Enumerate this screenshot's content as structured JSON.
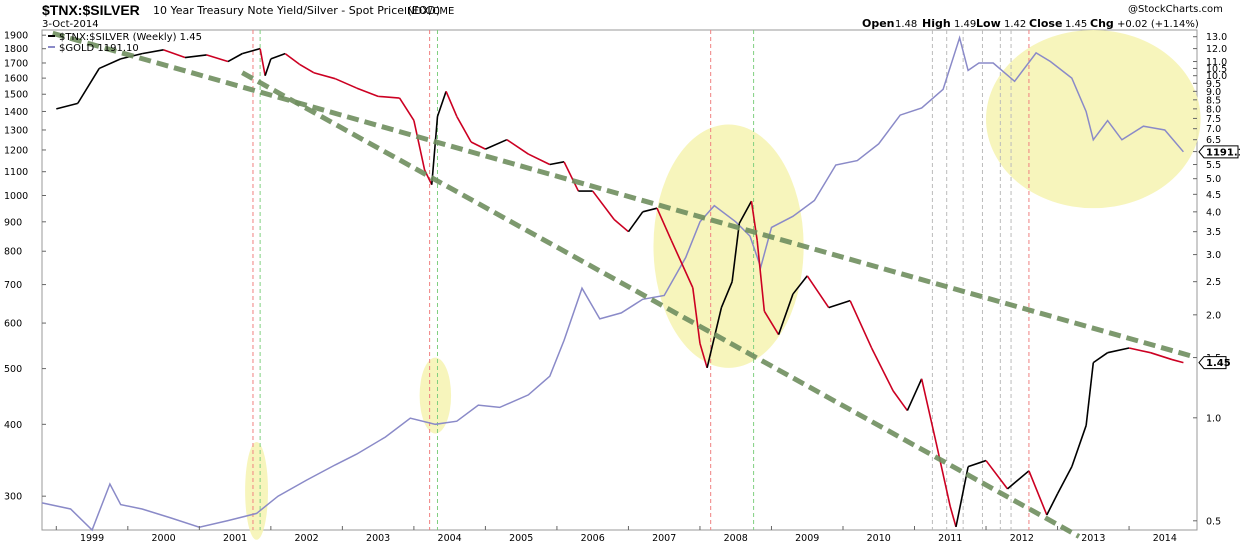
{
  "header": {
    "symbol": "$TNX:$SILVER",
    "description": "10 Year Treasury Note Yield/Silver - Spot Price (EOD)",
    "exchange": "INDX/CME",
    "date": "3-Oct-2014",
    "brand": "@StockCharts.com",
    "ohlc": [
      {
        "label": "Open",
        "value": "1.48"
      },
      {
        "label": "High",
        "value": "1.49"
      },
      {
        "label": "Low",
        "value": "1.42"
      },
      {
        "label": "Close",
        "value": "1.45"
      },
      {
        "label": "Chg",
        "value": "+0.02 (+1.14%)"
      }
    ]
  },
  "legend": [
    {
      "text": "$TNX:$SILVER (Weekly) 1.45",
      "color": "#000000"
    },
    {
      "text": "$GOLD 1191.10",
      "color": "#8a8ac8"
    }
  ],
  "colors": {
    "ratio_up": "#000000",
    "ratio_down": "#cc0022",
    "gold": "#8a8ac8",
    "trendline": "#6f8f5f",
    "highlight": "#f6f3b0",
    "vline_red": "#f08080",
    "vline_green": "#80d080",
    "vline_gray": "#bbbbbb"
  },
  "chart_data": {
    "type": "line",
    "x_labels": [
      "1999",
      "2000",
      "2001",
      "2002",
      "2003",
      "2004",
      "2005",
      "2006",
      "2007",
      "2008",
      "2009",
      "2010",
      "2011",
      "2012",
      "2013",
      "2014"
    ],
    "left_axis": {
      "scale": "log",
      "ticks": [
        1900,
        1800,
        1700,
        1600,
        1500,
        1400,
        1300,
        1200,
        1100,
        1000,
        900,
        800,
        700,
        600,
        500,
        400,
        300
      ],
      "range": [
        262,
        1940
      ]
    },
    "right_axis": {
      "scale": "log",
      "ticks": [
        13.0,
        12.0,
        11.0,
        10.5,
        10.0,
        9.5,
        9.0,
        8.5,
        8.0,
        7.5,
        7.0,
        6.5,
        6.0,
        5.5,
        5.0,
        4.5,
        4.0,
        3.5,
        3.0,
        2.5,
        2.0,
        1.5,
        1.0,
        0.5
      ],
      "range": [
        0.47,
        13.6
      ]
    },
    "last_values": {
      "ratio": "1.45",
      "gold": "1191.10"
    },
    "series": [
      {
        "name": "$TNX:$SILVER (Weekly)",
        "axis": "right",
        "points": [
          [
            1999.0,
            8.0
          ],
          [
            1999.3,
            8.3
          ],
          [
            1999.6,
            10.5
          ],
          [
            1999.9,
            11.2
          ],
          [
            2000.2,
            11.6
          ],
          [
            2000.5,
            11.9
          ],
          [
            2000.8,
            11.3
          ],
          [
            2001.1,
            11.5
          ],
          [
            2001.4,
            11.0
          ],
          [
            2001.6,
            11.6
          ],
          [
            2001.85,
            12.0
          ],
          [
            2001.92,
            10.0
          ],
          [
            2002.0,
            11.2
          ],
          [
            2002.2,
            11.6
          ],
          [
            2002.4,
            10.8
          ],
          [
            2002.6,
            10.2
          ],
          [
            2002.9,
            9.8
          ],
          [
            2003.2,
            9.2
          ],
          [
            2003.5,
            8.7
          ],
          [
            2003.8,
            8.6
          ],
          [
            2004.0,
            7.4
          ],
          [
            2004.15,
            5.3
          ],
          [
            2004.25,
            4.8
          ],
          [
            2004.33,
            7.6
          ],
          [
            2004.45,
            9.0
          ],
          [
            2004.6,
            7.6
          ],
          [
            2004.8,
            6.4
          ],
          [
            2005.0,
            6.1
          ],
          [
            2005.3,
            6.5
          ],
          [
            2005.6,
            5.9
          ],
          [
            2005.9,
            5.5
          ],
          [
            2006.1,
            5.6
          ],
          [
            2006.3,
            4.6
          ],
          [
            2006.5,
            4.6
          ],
          [
            2006.8,
            3.8
          ],
          [
            2007.0,
            3.5
          ],
          [
            2007.2,
            4.0
          ],
          [
            2007.4,
            4.1
          ],
          [
            2007.6,
            3.3
          ],
          [
            2007.9,
            2.4
          ],
          [
            2008.0,
            1.65
          ],
          [
            2008.1,
            1.4
          ],
          [
            2008.3,
            2.1
          ],
          [
            2008.45,
            2.5
          ],
          [
            2008.55,
            3.7
          ],
          [
            2008.72,
            4.3
          ],
          [
            2008.8,
            3.3
          ],
          [
            2008.9,
            2.05
          ],
          [
            2009.1,
            1.75
          ],
          [
            2009.3,
            2.3
          ],
          [
            2009.5,
            2.6
          ],
          [
            2009.8,
            2.1
          ],
          [
            2010.1,
            2.2
          ],
          [
            2010.4,
            1.6
          ],
          [
            2010.7,
            1.2
          ],
          [
            2010.9,
            1.05
          ],
          [
            2011.1,
            1.3
          ],
          [
            2011.3,
            0.85
          ],
          [
            2011.5,
            0.55
          ],
          [
            2011.58,
            0.48
          ],
          [
            2011.75,
            0.72
          ],
          [
            2012.0,
            0.75
          ],
          [
            2012.3,
            0.62
          ],
          [
            2012.6,
            0.7
          ],
          [
            2012.85,
            0.52
          ],
          [
            2013.0,
            0.6
          ],
          [
            2013.2,
            0.72
          ],
          [
            2013.4,
            0.95
          ],
          [
            2013.5,
            1.45
          ],
          [
            2013.7,
            1.55
          ],
          [
            2014.0,
            1.6
          ],
          [
            2014.3,
            1.55
          ],
          [
            2014.6,
            1.48
          ],
          [
            2014.76,
            1.45
          ]
        ]
      },
      {
        "name": "$GOLD",
        "axis": "left",
        "points": [
          [
            1998.8,
            292
          ],
          [
            1999.2,
            285
          ],
          [
            1999.5,
            262
          ],
          [
            1999.75,
            315
          ],
          [
            1999.9,
            290
          ],
          [
            2000.2,
            285
          ],
          [
            2000.6,
            275
          ],
          [
            2001.0,
            265
          ],
          [
            2001.4,
            272
          ],
          [
            2001.8,
            280
          ],
          [
            2002.1,
            300
          ],
          [
            2002.5,
            320
          ],
          [
            2002.9,
            340
          ],
          [
            2003.2,
            355
          ],
          [
            2003.6,
            380
          ],
          [
            2003.95,
            410
          ],
          [
            2004.3,
            400
          ],
          [
            2004.6,
            405
          ],
          [
            2004.9,
            432
          ],
          [
            2005.2,
            428
          ],
          [
            2005.6,
            450
          ],
          [
            2005.9,
            485
          ],
          [
            2006.1,
            560
          ],
          [
            2006.35,
            690
          ],
          [
            2006.6,
            610
          ],
          [
            2006.9,
            625
          ],
          [
            2007.2,
            660
          ],
          [
            2007.5,
            670
          ],
          [
            2007.8,
            780
          ],
          [
            2008.0,
            900
          ],
          [
            2008.2,
            960
          ],
          [
            2008.5,
            900
          ],
          [
            2008.7,
            850
          ],
          [
            2008.85,
            750
          ],
          [
            2009.0,
            880
          ],
          [
            2009.3,
            920
          ],
          [
            2009.6,
            980
          ],
          [
            2009.9,
            1130
          ],
          [
            2010.2,
            1150
          ],
          [
            2010.5,
            1230
          ],
          [
            2010.8,
            1380
          ],
          [
            2011.1,
            1420
          ],
          [
            2011.4,
            1530
          ],
          [
            2011.63,
            1880
          ],
          [
            2011.75,
            1650
          ],
          [
            2011.9,
            1700
          ],
          [
            2012.1,
            1700
          ],
          [
            2012.4,
            1580
          ],
          [
            2012.7,
            1770
          ],
          [
            2012.9,
            1710
          ],
          [
            2013.2,
            1600
          ],
          [
            2013.4,
            1400
          ],
          [
            2013.5,
            1250
          ],
          [
            2013.7,
            1350
          ],
          [
            2013.9,
            1250
          ],
          [
            2014.2,
            1320
          ],
          [
            2014.5,
            1300
          ],
          [
            2014.76,
            1191.1
          ]
        ]
      }
    ],
    "trendlines": [
      {
        "from": [
          1998.95,
          13.3
        ],
        "to": [
          2014.9,
          1.51
        ]
      },
      {
        "from": [
          2001.6,
          10.2
        ],
        "to": [
          2013.3,
          0.45
        ]
      }
    ],
    "highlights": [
      {
        "center": [
          2001.8,
          0.62
        ],
        "rx_years": 0.16,
        "ry_ratio": [
          0.44,
          0.85
        ]
      },
      {
        "center": [
          2004.3,
          1.17
        ],
        "rx_years": 0.22,
        "ry_ratio": [
          0.9,
          1.5
        ]
      },
      {
        "center": [
          2008.4,
          2.55
        ],
        "rx_years": 1.05,
        "ry_ratio": [
          1.4,
          7.2
        ]
      },
      {
        "center": [
          2013.5,
          7.2
        ],
        "rx_years": 1.5,
        "ry_ratio": [
          4.1,
          13.6
        ]
      }
    ],
    "vertical_lines": [
      {
        "x": 2001.75,
        "color": "red"
      },
      {
        "x": 2001.85,
        "color": "green"
      },
      {
        "x": 2004.22,
        "color": "red"
      },
      {
        "x": 2004.33,
        "color": "green"
      },
      {
        "x": 2008.15,
        "color": "red"
      },
      {
        "x": 2008.75,
        "color": "green"
      },
      {
        "x": 2011.25,
        "color": "gray"
      },
      {
        "x": 2011.45,
        "color": "gray"
      },
      {
        "x": 2011.68,
        "color": "gray"
      },
      {
        "x": 2011.95,
        "color": "gray"
      },
      {
        "x": 2012.2,
        "color": "gray"
      },
      {
        "x": 2012.35,
        "color": "gray"
      },
      {
        "x": 2012.6,
        "color": "red"
      }
    ]
  }
}
